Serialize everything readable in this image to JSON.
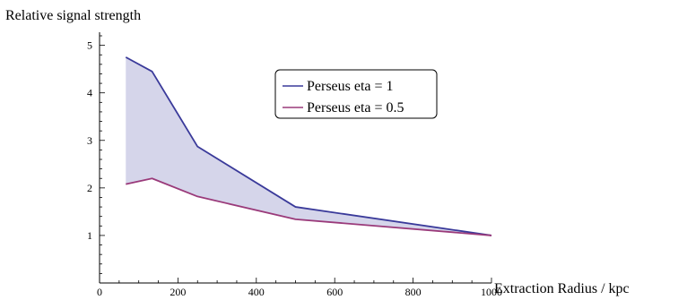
{
  "chart_data": {
    "type": "line",
    "xlabel": "Extraction Radius / kpc",
    "ylabel": "Relative signal strength",
    "xlim": [
      0,
      1000
    ],
    "ylim": [
      0,
      5.2
    ],
    "xticks": [
      0,
      200,
      400,
      600,
      800,
      1000
    ],
    "yticks": [
      1,
      2,
      3,
      4,
      5
    ],
    "grid": false,
    "legend_position": "top-center",
    "fill_between_series": true,
    "fill_color": "#d5d5ea",
    "series": [
      {
        "name": "Perseus eta = 1",
        "color": "#3a3a9a",
        "x": [
          67,
          134,
          250,
          500,
          1000
        ],
        "y": [
          4.75,
          4.45,
          2.87,
          1.6,
          1.0
        ]
      },
      {
        "name": "Perseus eta = 0.5",
        "color": "#9a3a7a",
        "x": [
          67,
          134,
          250,
          500,
          1000
        ],
        "y": [
          2.08,
          2.2,
          1.82,
          1.34,
          1.0
        ]
      }
    ]
  }
}
